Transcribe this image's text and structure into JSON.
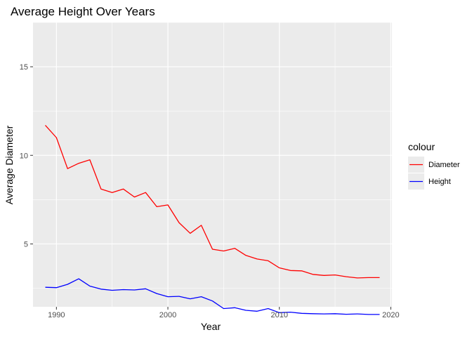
{
  "chart_data": {
    "type": "line",
    "title": "Average Height Over Years",
    "xlabel": "Year",
    "ylabel": "Average Diameter",
    "xlim": [
      1987.9,
      2020.1
    ],
    "ylim": [
      1.45,
      17.5
    ],
    "xticks": [
      1990,
      2000,
      2010,
      2020
    ],
    "yticks": [
      5,
      10,
      15
    ],
    "grid": true,
    "legend": {
      "title": "colour",
      "placement": "right"
    },
    "x": [
      1989,
      1990,
      1991,
      1992,
      1993,
      1994,
      1995,
      1996,
      1997,
      1998,
      1999,
      2000,
      2001,
      2002,
      2003,
      2004,
      2005,
      2006,
      2007,
      2008,
      2009,
      2010,
      2011,
      2012,
      2013,
      2014,
      2015,
      2016,
      2017,
      2018,
      2019
    ],
    "series": [
      {
        "name": "Diameter",
        "color": "#ff0000",
        "values": [
          11.7,
          11.0,
          9.25,
          9.55,
          9.75,
          8.1,
          7.9,
          8.1,
          7.65,
          7.9,
          7.1,
          7.2,
          6.2,
          5.6,
          6.05,
          4.7,
          4.6,
          4.75,
          4.35,
          4.15,
          4.05,
          3.65,
          3.5,
          3.48,
          3.28,
          3.22,
          3.25,
          3.15,
          3.08,
          3.1,
          3.1
        ]
      },
      {
        "name": "Height",
        "color": "#0000ff",
        "values": [
          2.55,
          2.53,
          2.72,
          3.03,
          2.62,
          2.45,
          2.38,
          2.42,
          2.4,
          2.47,
          2.2,
          2.02,
          2.04,
          1.9,
          2.02,
          1.78,
          1.35,
          1.4,
          1.25,
          1.2,
          1.35,
          1.12,
          1.15,
          1.08,
          1.06,
          1.05,
          1.06,
          1.03,
          1.05,
          1.02,
          1.02
        ]
      }
    ]
  }
}
